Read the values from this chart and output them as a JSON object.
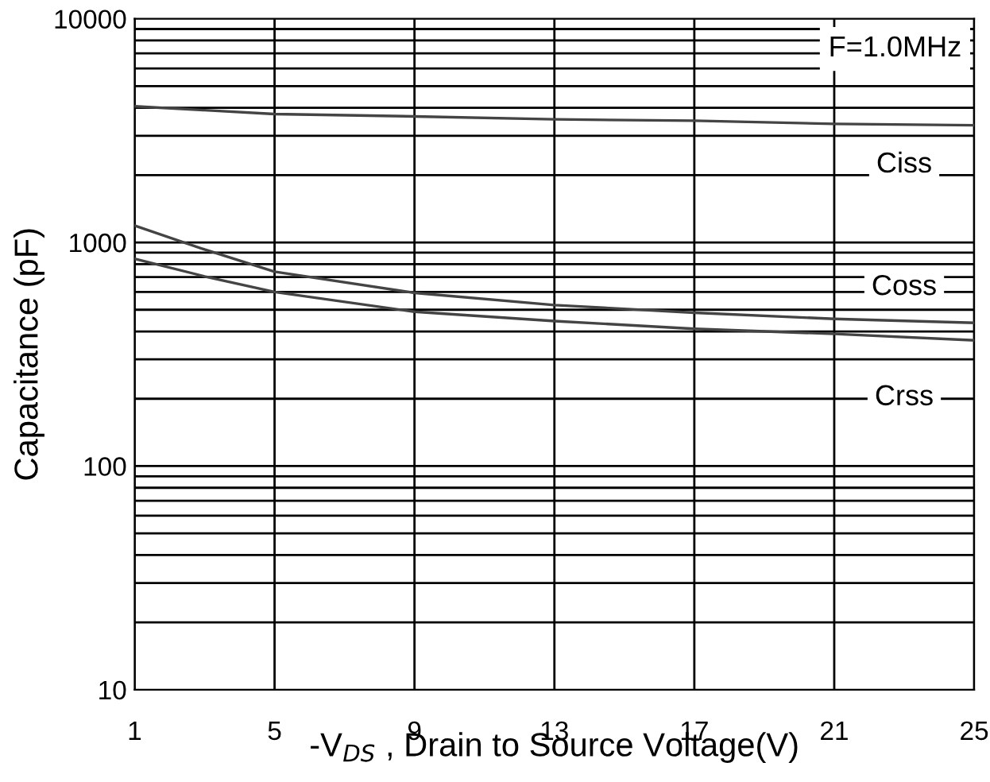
{
  "chart_data": {
    "type": "line",
    "xlabel": "-V$_{DS}$ , Drain to Source Voltage(V)",
    "ylabel": "Capacitance (pF)",
    "x": [
      1,
      3,
      5,
      9,
      13,
      17,
      21,
      25
    ],
    "series": [
      {
        "name": "Ciss",
        "color": "#444444",
        "values": [
          4060,
          3900,
          3750,
          3660,
          3550,
          3500,
          3390,
          3340
        ]
      },
      {
        "name": "Coss",
        "color": "#444444",
        "values": [
          1190,
          930,
          740,
          595,
          525,
          485,
          455,
          437
        ]
      },
      {
        "name": "Crss",
        "color": "#444444",
        "values": [
          845,
          705,
          600,
          490,
          445,
          411,
          390,
          365
        ]
      }
    ],
    "log": "y",
    "xlim": [
      1,
      25
    ],
    "ylim": [
      10,
      10000
    ],
    "xticks": [
      1,
      5,
      9,
      13,
      17,
      21,
      25
    ],
    "yticks": [
      10,
      100,
      1000,
      10000
    ],
    "grid": true,
    "legend": false,
    "marker": "none",
    "line_style": "solid",
    "annotations": [
      "F=1.0MHz"
    ]
  }
}
